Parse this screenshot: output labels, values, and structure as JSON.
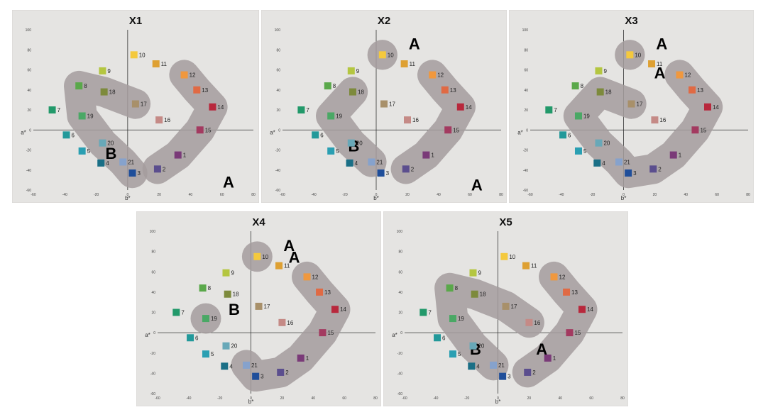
{
  "chart_data": {
    "type": "scatter",
    "xlabel": "b*",
    "ylabel": "a*",
    "xlim": [
      -60,
      80
    ],
    "ylim": [
      -60,
      100
    ],
    "x_ticks": [
      "-60",
      "-40",
      "-20",
      "0",
      "20",
      "40",
      "60",
      "80"
    ],
    "y_ticks": [
      "100",
      "80",
      "60",
      "40",
      "20",
      "0",
      "-20",
      "-40",
      "-60"
    ],
    "point_colors": {
      "1": "#7a3a78",
      "2": "#5b4e8e",
      "3": "#1f4e9a",
      "4": "#1a6f86",
      "5": "#2a9fb2",
      "6": "#22999a",
      "7": "#22996a",
      "8": "#5aa84a",
      "9": "#b4c640",
      "10": "#f4c93e",
      "11": "#dea032",
      "12": "#f0983e",
      "13": "#e06a44",
      "14": "#b8283c",
      "15": "#a33a60",
      "16": "#c58a86",
      "17": "#a8906a",
      "18": "#7d8a3c",
      "19": "#4aa865",
      "20": "#68a8b8",
      "21": "#86a2cc"
    },
    "panels": [
      {
        "title": "X1",
        "points": [
          {
            "label": "1",
            "x": 32,
            "y": -25
          },
          {
            "label": "2",
            "x": 19,
            "y": -39
          },
          {
            "label": "3",
            "x": 3,
            "y": -43
          },
          {
            "label": "4",
            "x": -17,
            "y": -33
          },
          {
            "label": "5",
            "x": -29,
            "y": -21
          },
          {
            "label": "6",
            "x": -39,
            "y": -5
          },
          {
            "label": "7",
            "x": -48,
            "y": 20
          },
          {
            "label": "8",
            "x": -31,
            "y": 44
          },
          {
            "label": "9",
            "x": -16,
            "y": 59
          },
          {
            "label": "10",
            "x": 4,
            "y": 75
          },
          {
            "label": "11",
            "x": 18,
            "y": 66
          },
          {
            "label": "12",
            "x": 36,
            "y": 55
          },
          {
            "label": "13",
            "x": 44,
            "y": 40
          },
          {
            "label": "14",
            "x": 54,
            "y": 23
          },
          {
            "label": "15",
            "x": 46,
            "y": 0
          },
          {
            "label": "16",
            "x": 20,
            "y": 10
          },
          {
            "label": "17",
            "x": 5,
            "y": 26
          },
          {
            "label": "18",
            "x": -15,
            "y": 38
          },
          {
            "label": "19",
            "x": -29,
            "y": 14
          },
          {
            "label": "20",
            "x": -16,
            "y": -13
          },
          {
            "label": "21",
            "x": -3,
            "y": -32
          }
        ],
        "groups": [
          {
            "label": "A",
            "members": [
              "2",
              "1",
              "15",
              "14",
              "13",
              "12"
            ]
          },
          {
            "label": "B",
            "members": [
              "3",
              "21",
              "20",
              "19",
              "8",
              "18",
              "17"
            ]
          }
        ]
      },
      {
        "title": "X2",
        "points": [
          {
            "label": "1",
            "x": 32,
            "y": -25
          },
          {
            "label": "2",
            "x": 19,
            "y": -39
          },
          {
            "label": "3",
            "x": 3,
            "y": -43
          },
          {
            "label": "4",
            "x": -17,
            "y": -33
          },
          {
            "label": "5",
            "x": -29,
            "y": -21
          },
          {
            "label": "6",
            "x": -39,
            "y": -5
          },
          {
            "label": "7",
            "x": -48,
            "y": 20
          },
          {
            "label": "8",
            "x": -31,
            "y": 44
          },
          {
            "label": "9",
            "x": -16,
            "y": 59
          },
          {
            "label": "10",
            "x": 4,
            "y": 75
          },
          {
            "label": "11",
            "x": 18,
            "y": 66
          },
          {
            "label": "12",
            "x": 36,
            "y": 55
          },
          {
            "label": "13",
            "x": 44,
            "y": 40
          },
          {
            "label": "14",
            "x": 54,
            "y": 23
          },
          {
            "label": "15",
            "x": 46,
            "y": 0
          },
          {
            "label": "16",
            "x": 20,
            "y": 10
          },
          {
            "label": "17",
            "x": 5,
            "y": 26
          },
          {
            "label": "18",
            "x": -15,
            "y": 38
          },
          {
            "label": "19",
            "x": -29,
            "y": 14
          },
          {
            "label": "20",
            "x": -16,
            "y": -13
          },
          {
            "label": "21",
            "x": -3,
            "y": -32
          }
        ],
        "groups": [
          {
            "label": "A",
            "members": [
              "10"
            ]
          },
          {
            "label": "A",
            "members": [
              "2",
              "1",
              "15",
              "14",
              "13",
              "12"
            ]
          },
          {
            "label": "B",
            "members": [
              "21",
              "20",
              "19",
              "18"
            ]
          }
        ]
      },
      {
        "title": "X3",
        "points": [
          {
            "label": "1",
            "x": 32,
            "y": -25
          },
          {
            "label": "2",
            "x": 19,
            "y": -39
          },
          {
            "label": "3",
            "x": 3,
            "y": -43
          },
          {
            "label": "4",
            "x": -17,
            "y": -33
          },
          {
            "label": "5",
            "x": -29,
            "y": -21
          },
          {
            "label": "6",
            "x": -39,
            "y": -5
          },
          {
            "label": "7",
            "x": -48,
            "y": 20
          },
          {
            "label": "8",
            "x": -31,
            "y": 44
          },
          {
            "label": "9",
            "x": -16,
            "y": 59
          },
          {
            "label": "10",
            "x": 4,
            "y": 75
          },
          {
            "label": "11",
            "x": 18,
            "y": 66
          },
          {
            "label": "12",
            "x": 36,
            "y": 55
          },
          {
            "label": "13",
            "x": 44,
            "y": 40
          },
          {
            "label": "14",
            "x": 54,
            "y": 23
          },
          {
            "label": "15",
            "x": 46,
            "y": 0
          },
          {
            "label": "16",
            "x": 20,
            "y": 10
          },
          {
            "label": "17",
            "x": 5,
            "y": 26
          },
          {
            "label": "18",
            "x": -15,
            "y": 38
          },
          {
            "label": "19",
            "x": -29,
            "y": 14
          },
          {
            "label": "20",
            "x": -16,
            "y": -13
          },
          {
            "label": "21",
            "x": -3,
            "y": -32
          }
        ],
        "groups": [
          {
            "label": "A",
            "members": [
              "10"
            ]
          },
          {
            "label": "A",
            "members": [
              "12",
              "13",
              "14",
              "15",
              "1",
              "2",
              "3",
              "21",
              "20",
              "19",
              "18",
              "17"
            ]
          }
        ]
      },
      {
        "title": "X4",
        "points": [
          {
            "label": "1",
            "x": 32,
            "y": -25
          },
          {
            "label": "2",
            "x": 19,
            "y": -39
          },
          {
            "label": "3",
            "x": 3,
            "y": -43
          },
          {
            "label": "4",
            "x": -17,
            "y": -33
          },
          {
            "label": "5",
            "x": -29,
            "y": -21
          },
          {
            "label": "6",
            "x": -39,
            "y": -5
          },
          {
            "label": "7",
            "x": -48,
            "y": 20
          },
          {
            "label": "8",
            "x": -31,
            "y": 44
          },
          {
            "label": "9",
            "x": -16,
            "y": 59
          },
          {
            "label": "10",
            "x": 4,
            "y": 75
          },
          {
            "label": "11",
            "x": 18,
            "y": 66
          },
          {
            "label": "12",
            "x": 36,
            "y": 55
          },
          {
            "label": "13",
            "x": 44,
            "y": 40
          },
          {
            "label": "14",
            "x": 54,
            "y": 23
          },
          {
            "label": "15",
            "x": 46,
            "y": 0
          },
          {
            "label": "16",
            "x": 20,
            "y": 10
          },
          {
            "label": "17",
            "x": 5,
            "y": 26
          },
          {
            "label": "18",
            "x": -15,
            "y": 38
          },
          {
            "label": "19",
            "x": -29,
            "y": 14
          },
          {
            "label": "20",
            "x": -16,
            "y": -13
          },
          {
            "label": "21",
            "x": -3,
            "y": -32
          }
        ],
        "groups": [
          {
            "label": "A",
            "members": [
              "10"
            ]
          },
          {
            "label": "A",
            "members": [
              "12",
              "13",
              "14",
              "15",
              "1",
              "2",
              "3",
              "21"
            ]
          },
          {
            "label": "B",
            "members": [
              "19"
            ]
          }
        ]
      },
      {
        "title": "X5",
        "points": [
          {
            "label": "1",
            "x": 32,
            "y": -25
          },
          {
            "label": "2",
            "x": 19,
            "y": -39
          },
          {
            "label": "3",
            "x": 3,
            "y": -43
          },
          {
            "label": "4",
            "x": -17,
            "y": -33
          },
          {
            "label": "5",
            "x": -29,
            "y": -21
          },
          {
            "label": "6",
            "x": -39,
            "y": -5
          },
          {
            "label": "7",
            "x": -48,
            "y": 20
          },
          {
            "label": "8",
            "x": -31,
            "y": 44
          },
          {
            "label": "9",
            "x": -16,
            "y": 59
          },
          {
            "label": "10",
            "x": 4,
            "y": 75
          },
          {
            "label": "11",
            "x": 18,
            "y": 66
          },
          {
            "label": "12",
            "x": 36,
            "y": 55
          },
          {
            "label": "13",
            "x": 44,
            "y": 40
          },
          {
            "label": "14",
            "x": 54,
            "y": 23
          },
          {
            "label": "15",
            "x": 46,
            "y": 0
          },
          {
            "label": "16",
            "x": 20,
            "y": 10
          },
          {
            "label": "17",
            "x": 5,
            "y": 26
          },
          {
            "label": "18",
            "x": -15,
            "y": 38
          },
          {
            "label": "19",
            "x": -29,
            "y": 14
          },
          {
            "label": "20",
            "x": -16,
            "y": -13
          },
          {
            "label": "21",
            "x": -3,
            "y": -32
          }
        ],
        "groups": [
          {
            "label": "A",
            "members": [
              "2",
              "1",
              "15",
              "14",
              "13",
              "12"
            ]
          },
          {
            "label": "B",
            "members": [
              "21",
              "20",
              "19",
              "8",
              "18",
              "17",
              "16"
            ]
          }
        ]
      }
    ]
  }
}
